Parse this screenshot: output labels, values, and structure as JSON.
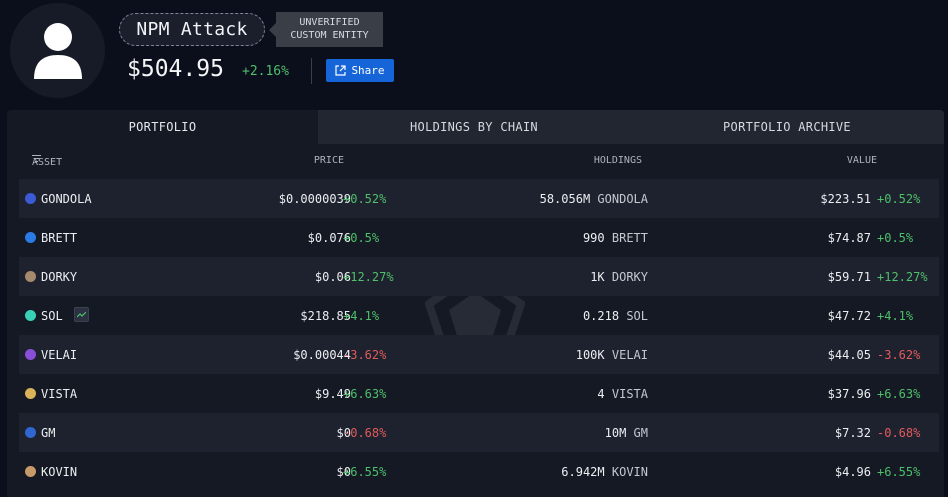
{
  "entity": {
    "name": "NPM Attack",
    "tag_line1": "UNVERIFIED",
    "tag_line2": "CUSTOM ENTITY",
    "balance": "$504.95",
    "balance_change": "+2.16%",
    "share_label": "Share"
  },
  "tabs": [
    {
      "label": "PORTFOLIO",
      "active": true
    },
    {
      "label": "HOLDINGS BY CHAIN",
      "active": false
    },
    {
      "label": "PORTFOLIO ARCHIVE",
      "active": false
    }
  ],
  "columns": {
    "asset": "ASSET",
    "price": "PRICE",
    "holdings": "HOLDINGS",
    "value": "VALUE"
  },
  "rows": [
    {
      "asset": "GONDOLA",
      "price": "$0.0000039",
      "price_change": "+0.52%",
      "holdings_amount": "58.056M",
      "holdings_unit": "GONDOLA",
      "value": "$223.51",
      "value_change": "+0.52%",
      "icon_color": "#3b5bd6"
    },
    {
      "asset": "BRETT",
      "price": "$0.076",
      "price_change": "+0.5%",
      "holdings_amount": "990",
      "holdings_unit": "BRETT",
      "value": "$74.87",
      "value_change": "+0.5%",
      "icon_color": "#2a7be4"
    },
    {
      "asset": "DORKY",
      "price": "$0.06",
      "price_change": "+12.27%",
      "holdings_amount": "1K",
      "holdings_unit": "DORKY",
      "value": "$59.71",
      "value_change": "+12.27%",
      "icon_color": "#a58a6e"
    },
    {
      "asset": "SOL",
      "price": "$218.85",
      "price_change": "+4.1%",
      "holdings_amount": "0.218",
      "holdings_unit": "SOL",
      "value": "$47.72",
      "value_change": "+4.1%",
      "icon_color": "#39d0b8"
    },
    {
      "asset": "VELAI",
      "price": "$0.00044",
      "price_change": "-3.62%",
      "holdings_amount": "100K",
      "holdings_unit": "VELAI",
      "value": "$44.05",
      "value_change": "-3.62%",
      "icon_color": "#8a4fd8"
    },
    {
      "asset": "VISTA",
      "price": "$9.49",
      "price_change": "+6.63%",
      "holdings_amount": "4",
      "holdings_unit": "VISTA",
      "value": "$37.96",
      "value_change": "+6.63%",
      "icon_color": "#d9b25a"
    },
    {
      "asset": "GM",
      "price": "$0",
      "price_change": "-0.68%",
      "holdings_amount": "10M",
      "holdings_unit": "GM",
      "value": "$7.32",
      "value_change": "-0.68%",
      "icon_color": "#2f66d0"
    },
    {
      "asset": "KOVIN",
      "price": "$0",
      "price_change": "+6.55%",
      "holdings_amount": "6.942M",
      "holdings_unit": "KOVIN",
      "value": "$4.96",
      "value_change": "+6.55%",
      "icon_color": "#c79a6a"
    }
  ],
  "colors": {
    "positive": "#4fbf6a",
    "negative": "#e05b5b",
    "accent": "#1565d8"
  },
  "icons": {
    "avatar": "user-silhouette-icon",
    "share": "external-link-icon",
    "sort": "filter-lines-icon",
    "trend": "trend-up-icon"
  }
}
